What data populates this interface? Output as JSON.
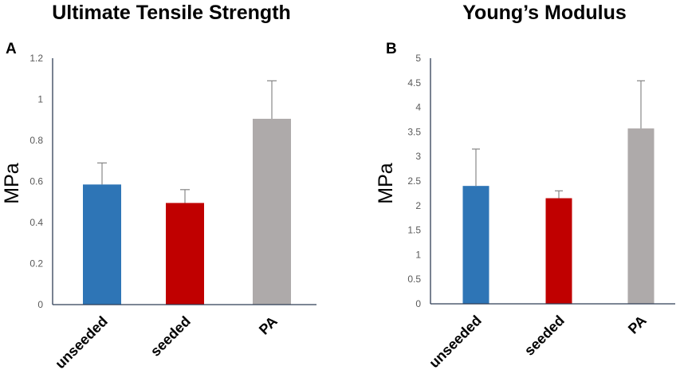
{
  "chart_data": [
    {
      "type": "bar",
      "panel_label": "A",
      "title": "Ultimate Tensile Strength",
      "ylabel": "MPa",
      "xlabel": "",
      "categories": [
        "unseeded",
        "seeded",
        "PA"
      ],
      "values": [
        0.585,
        0.495,
        0.905
      ],
      "errors": [
        0.105,
        0.065,
        0.185
      ],
      "colors": [
        "#2e75b6",
        "#c00000",
        "#aeaaaa"
      ],
      "ylim": [
        0,
        1.2
      ],
      "yticks": [
        "0",
        "0.2",
        "0.4",
        "0.6",
        "0.8",
        "1",
        "1.2"
      ],
      "grid": false
    },
    {
      "type": "bar",
      "panel_label": "B",
      "title": "Young’s Modulus",
      "ylabel": "MPa",
      "xlabel": "",
      "categories": [
        "unseeded",
        "seeded",
        "PA"
      ],
      "values": [
        2.4,
        2.15,
        3.57
      ],
      "errors": [
        0.75,
        0.15,
        0.97
      ],
      "colors": [
        "#2e75b6",
        "#c00000",
        "#aeaaaa"
      ],
      "ylim": [
        0,
        5
      ],
      "yticks": [
        "0",
        "0.5",
        "1",
        "1.5",
        "2",
        "2.5",
        "3",
        "3.5",
        "4",
        "4.5",
        "5"
      ],
      "grid": false
    }
  ]
}
